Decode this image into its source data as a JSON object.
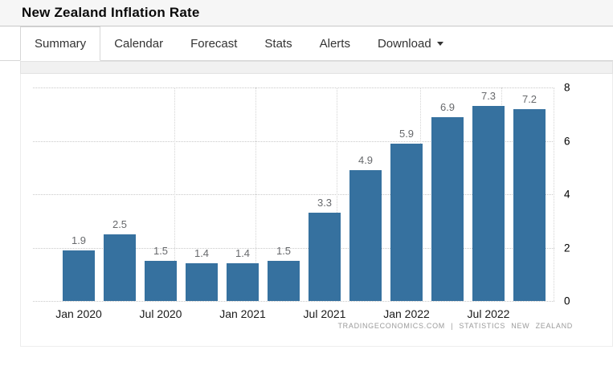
{
  "header": {
    "title": "New Zealand Inflation Rate"
  },
  "tabs": [
    {
      "label": "Summary",
      "active": true
    },
    {
      "label": "Calendar",
      "active": false
    },
    {
      "label": "Forecast",
      "active": false
    },
    {
      "label": "Stats",
      "active": false
    },
    {
      "label": "Alerts",
      "active": false
    },
    {
      "label": "Download",
      "active": false,
      "has_caret": true
    }
  ],
  "chart_data": {
    "type": "bar",
    "title": "New Zealand Inflation Rate",
    "values": [
      1.9,
      2.5,
      1.5,
      1.4,
      1.4,
      1.5,
      3.3,
      4.9,
      5.9,
      6.9,
      7.3,
      7.2
    ],
    "value_labels": [
      "1.9",
      "2.5",
      "1.5",
      "1.4",
      "1.4",
      "1.5",
      "3.3",
      "4.9",
      "5.9",
      "6.9",
      "7.3",
      "7.2"
    ],
    "x_tick_labels": [
      "Jan 2020",
      "Jul 2020",
      "Jan 2021",
      "Jul 2021",
      "Jan 2022",
      "Jul 2022"
    ],
    "x_tick_every": 2,
    "y_ticks": [
      0,
      2,
      4,
      6,
      8
    ],
    "ylim": [
      0,
      8
    ],
    "yaxis_side": "right",
    "grid": "dotted",
    "legend": "none",
    "bar_color": "#36719f",
    "attribution": "TRADINGECONOMICS.COM | STATISTICS NEW ZEALAND"
  }
}
